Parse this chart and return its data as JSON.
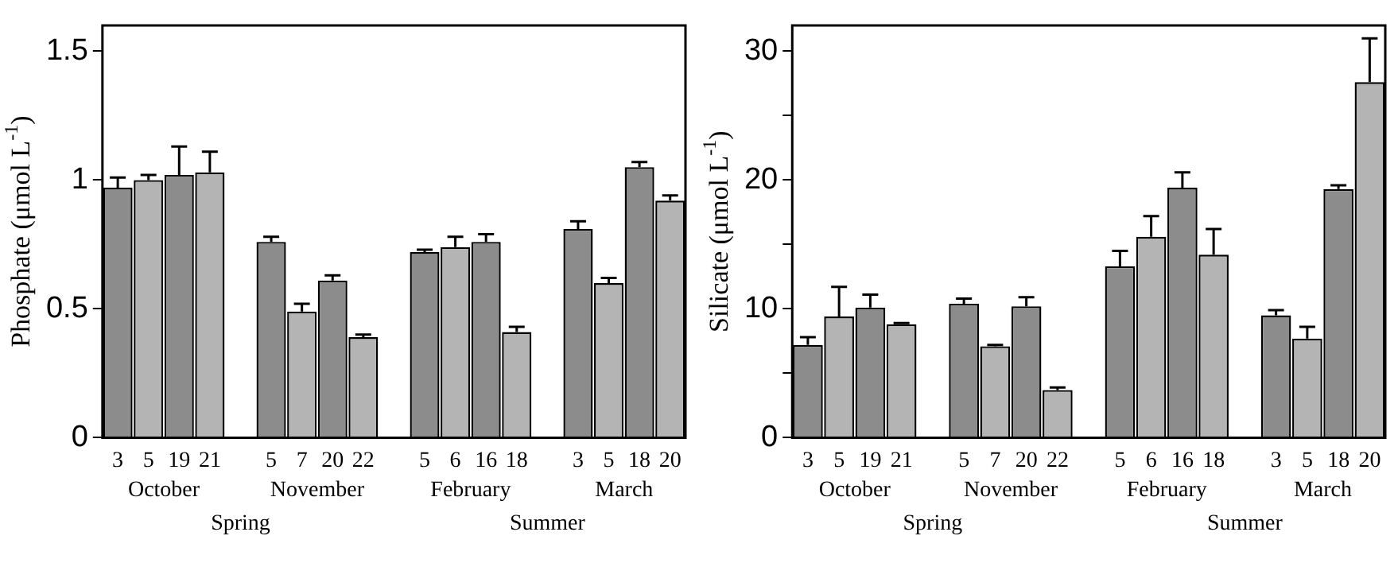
{
  "chart_data": [
    {
      "type": "bar",
      "ylabel": "Phosphate (μmol L$^{-1}$)",
      "categories": [
        "3",
        "5",
        "19",
        "21",
        null,
        "5",
        "7",
        "20",
        "22",
        null,
        "5",
        "6",
        "16",
        "18",
        null,
        "3",
        "5",
        "18",
        "20"
      ],
      "values": [
        0.97,
        1.0,
        1.02,
        1.03,
        null,
        0.76,
        0.49,
        0.61,
        0.39,
        null,
        0.72,
        0.74,
        0.76,
        0.41,
        null,
        0.81,
        0.6,
        1.05,
        0.92
      ],
      "colors": [
        "#8c8c8c",
        "#b4b4b4",
        "#8c8c8c",
        "#b4b4b4",
        null,
        "#8c8c8c",
        "#b4b4b4",
        "#8c8c8c",
        "#b4b4b4",
        null,
        "#8c8c8c",
        "#b4b4b4",
        "#8c8c8c",
        "#b4b4b4",
        null,
        "#8c8c8c",
        "#b4b4b4",
        "#8c8c8c",
        "#b4b4b4"
      ],
      "errors": [
        [
          0.97,
          1.01
        ],
        [
          1.0,
          1.02
        ],
        [
          1.02,
          1.13
        ],
        [
          1.03,
          1.11
        ],
        null,
        [
          0.76,
          0.78
        ],
        [
          0.49,
          0.52
        ],
        [
          0.61,
          0.63
        ],
        [
          0.39,
          0.4
        ],
        null,
        [
          0.72,
          0.73
        ],
        [
          0.74,
          0.78
        ],
        [
          0.76,
          0.79
        ],
        [
          0.41,
          0.43
        ],
        null,
        [
          0.81,
          0.84
        ],
        [
          0.6,
          0.62
        ],
        [
          1.05,
          1.07
        ],
        [
          0.92,
          0.94
        ]
      ],
      "ylim": [
        0,
        1.6
      ],
      "yticks": [
        0,
        0.5,
        1,
        1.5
      ],
      "annotations": [
        "October",
        "November",
        "February",
        "March",
        "Spring",
        "Summer"
      ]
    },
    {
      "type": "bar",
      "ylabel": "Silicate (μmol L$^{-1}$)",
      "categories": [
        "3",
        "5",
        "19",
        "21",
        null,
        "5",
        "7",
        "20",
        "22",
        null,
        "5",
        "6",
        "16",
        "18",
        null,
        "3",
        "5",
        "18",
        "20"
      ],
      "values": [
        7.2,
        9.4,
        10.1,
        8.8,
        null,
        10.4,
        7.1,
        10.2,
        3.7,
        null,
        13.3,
        15.6,
        19.4,
        14.2,
        null,
        9.5,
        7.7,
        19.3,
        27.6
      ],
      "colors": [
        "#8c8c8c",
        "#b4b4b4",
        "#8c8c8c",
        "#b4b4b4",
        null,
        "#8c8c8c",
        "#b4b4b4",
        "#8c8c8c",
        "#b4b4b4",
        null,
        "#8c8c8c",
        "#b4b4b4",
        "#8c8c8c",
        "#b4b4b4",
        null,
        "#8c8c8c",
        "#b4b4b4",
        "#8c8c8c",
        "#b4b4b4"
      ],
      "errors": [
        [
          7.2,
          7.8
        ],
        [
          9.4,
          11.7
        ],
        [
          10.1,
          11.1
        ],
        [
          8.8,
          8.9
        ],
        null,
        [
          10.4,
          10.8
        ],
        [
          7.1,
          7.2
        ],
        [
          10.2,
          10.9
        ],
        [
          3.7,
          3.9
        ],
        null,
        [
          13.3,
          14.5
        ],
        [
          15.6,
          17.2
        ],
        [
          19.4,
          20.6
        ],
        [
          14.2,
          16.2
        ],
        null,
        [
          9.5,
          9.9
        ],
        [
          7.7,
          8.6
        ],
        [
          19.3,
          19.6
        ],
        [
          27.6,
          31.0
        ]
      ],
      "ylim": [
        0,
        32
      ],
      "yticks": [
        0,
        {
          "value": 5,
          "label": null
        },
        10,
        {
          "value": 15,
          "label": null
        },
        20,
        {
          "value": 25,
          "label": null
        },
        30
      ],
      "annotations": [
        "October",
        "November",
        "February",
        "March",
        "Spring",
        "Summer"
      ]
    }
  ]
}
